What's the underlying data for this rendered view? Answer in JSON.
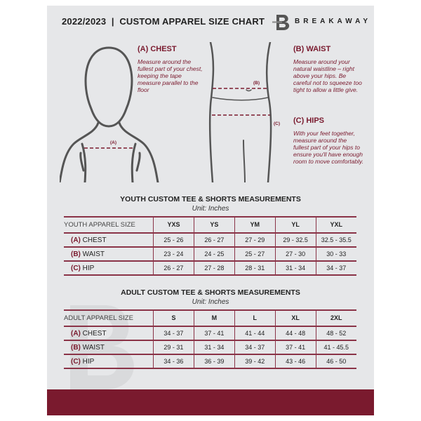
{
  "header": {
    "title": "2022/2023  |  CUSTOM APPAREL SIZE CHART",
    "brand": "BREAKAWAY"
  },
  "colors": {
    "accent": "#7a1a2e",
    "background": "#e6e7e9"
  },
  "measures": {
    "chest": {
      "title": "(A) CHEST",
      "desc": "Measure around the fullest part of your chest, keeping the tape measure parallel to the floor",
      "marker": "(A)"
    },
    "waist": {
      "title": "(B) WAIST",
      "desc": "Measure around your natural waistline – right above your hips. Be careful not to squeeze too tight to allow a little give.",
      "marker": "(B)"
    },
    "hips": {
      "title": "(C) HIPS",
      "desc": "With your feet together, measure around the fullest part of your hips to ensure you'll have enough room to move comfortably.",
      "marker": "(C)"
    }
  },
  "youth": {
    "title": "YOUTH CUSTOM TEE & SHORTS MEASUREMENTS",
    "unit": "Unit: Inches",
    "header": "YOUTH APPAREL SIZE",
    "sizes": [
      "YXS",
      "YS",
      "YM",
      "YL",
      "YXL"
    ],
    "rows": [
      {
        "letter": "(A)",
        "label": "CHEST",
        "values": [
          "25 - 26",
          "26 - 27",
          "27 - 29",
          "29 - 32.5",
          "32.5 - 35.5"
        ]
      },
      {
        "letter": "(B)",
        "label": "WAIST",
        "values": [
          "23 - 24",
          "24 - 25",
          "25 - 27",
          "27 - 30",
          "30 - 33"
        ]
      },
      {
        "letter": "(C)",
        "label": "HIP",
        "values": [
          "26 - 27",
          "27 - 28",
          "28 - 31",
          "31 - 34",
          "34 - 37"
        ]
      }
    ]
  },
  "adult": {
    "title": "ADULT CUSTOM TEE & SHORTS MEASUREMENTS",
    "unit": "Unit: Inches",
    "header": "ADULT APPAREL SIZE",
    "sizes": [
      "S",
      "M",
      "L",
      "XL",
      "2XL"
    ],
    "rows": [
      {
        "letter": "(A)",
        "label": "CHEST",
        "values": [
          "34 - 37",
          "37 - 41",
          "41 - 44",
          "44 - 48",
          "48 - 52"
        ]
      },
      {
        "letter": "(B)",
        "label": "WAIST",
        "values": [
          "29 - 31",
          "31 - 34",
          "34 - 37",
          "37 - 41",
          "41 - 45.5"
        ]
      },
      {
        "letter": "(C)",
        "label": "HIP",
        "values": [
          "34 - 36",
          "36 - 39",
          "39 - 42",
          "43 - 46",
          "46 - 50"
        ]
      }
    ]
  }
}
